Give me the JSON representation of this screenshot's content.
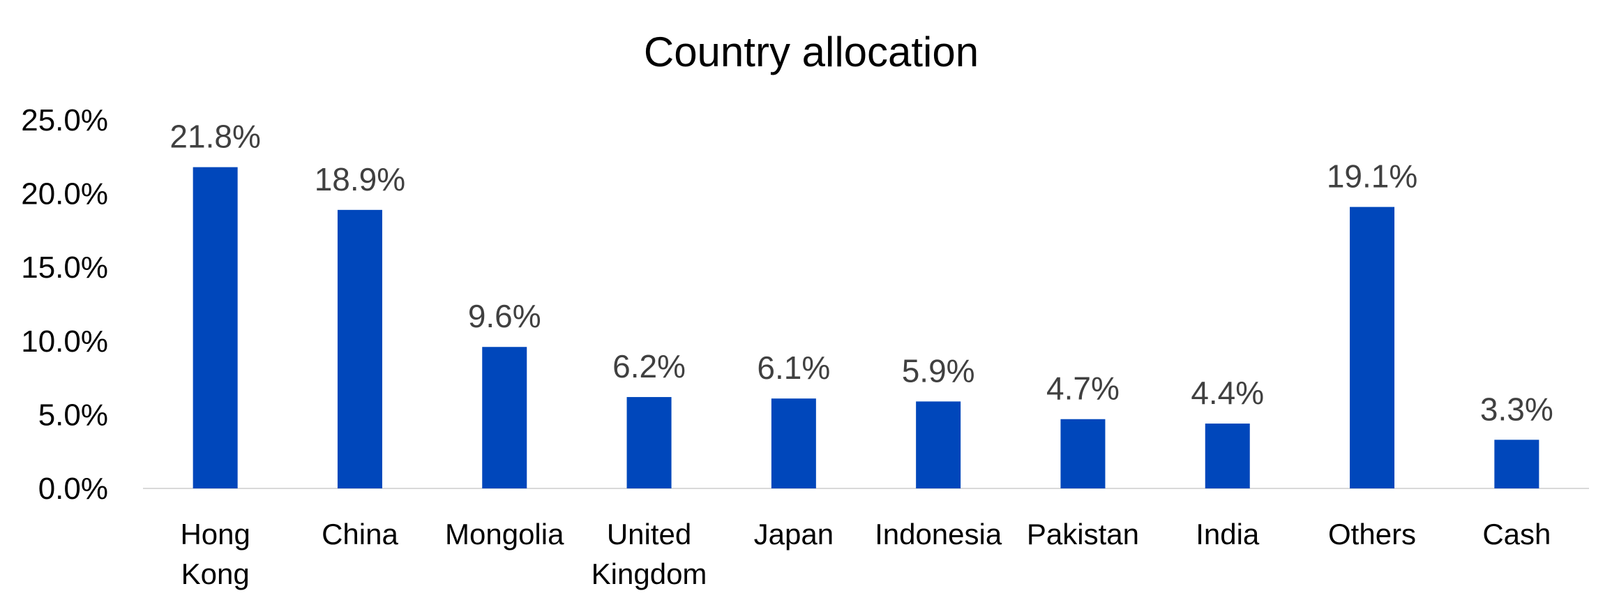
{
  "chart_data": {
    "type": "bar",
    "title": "Country allocation",
    "xlabel": "",
    "ylabel": "",
    "categories": [
      [
        "Hong",
        "Kong"
      ],
      [
        "China"
      ],
      [
        "Mongolia"
      ],
      [
        "United",
        "Kingdom"
      ],
      [
        "Japan"
      ],
      [
        "Indonesia"
      ],
      [
        "Pakistan"
      ],
      [
        "India"
      ],
      [
        "Others"
      ],
      [
        "Cash"
      ]
    ],
    "values": [
      21.8,
      18.9,
      9.6,
      6.2,
      6.1,
      5.9,
      4.7,
      4.4,
      19.1,
      3.3
    ],
    "data_labels": [
      "21.8%",
      "18.9%",
      "9.6%",
      "6.2%",
      "6.1%",
      "5.9%",
      "4.7%",
      "4.4%",
      "19.1%",
      "3.3%"
    ],
    "ylim": [
      0,
      25
    ],
    "yticks": [
      0,
      5,
      10,
      15,
      20,
      25
    ],
    "ytick_labels": [
      "0.0%",
      "5.0%",
      "10.0%",
      "15.0%",
      "20.0%",
      "25.0%"
    ],
    "grid": false,
    "legend": "none",
    "bar_color": "#0047BB",
    "axis_color": "#D9D9D9",
    "label_color": "#404040"
  }
}
